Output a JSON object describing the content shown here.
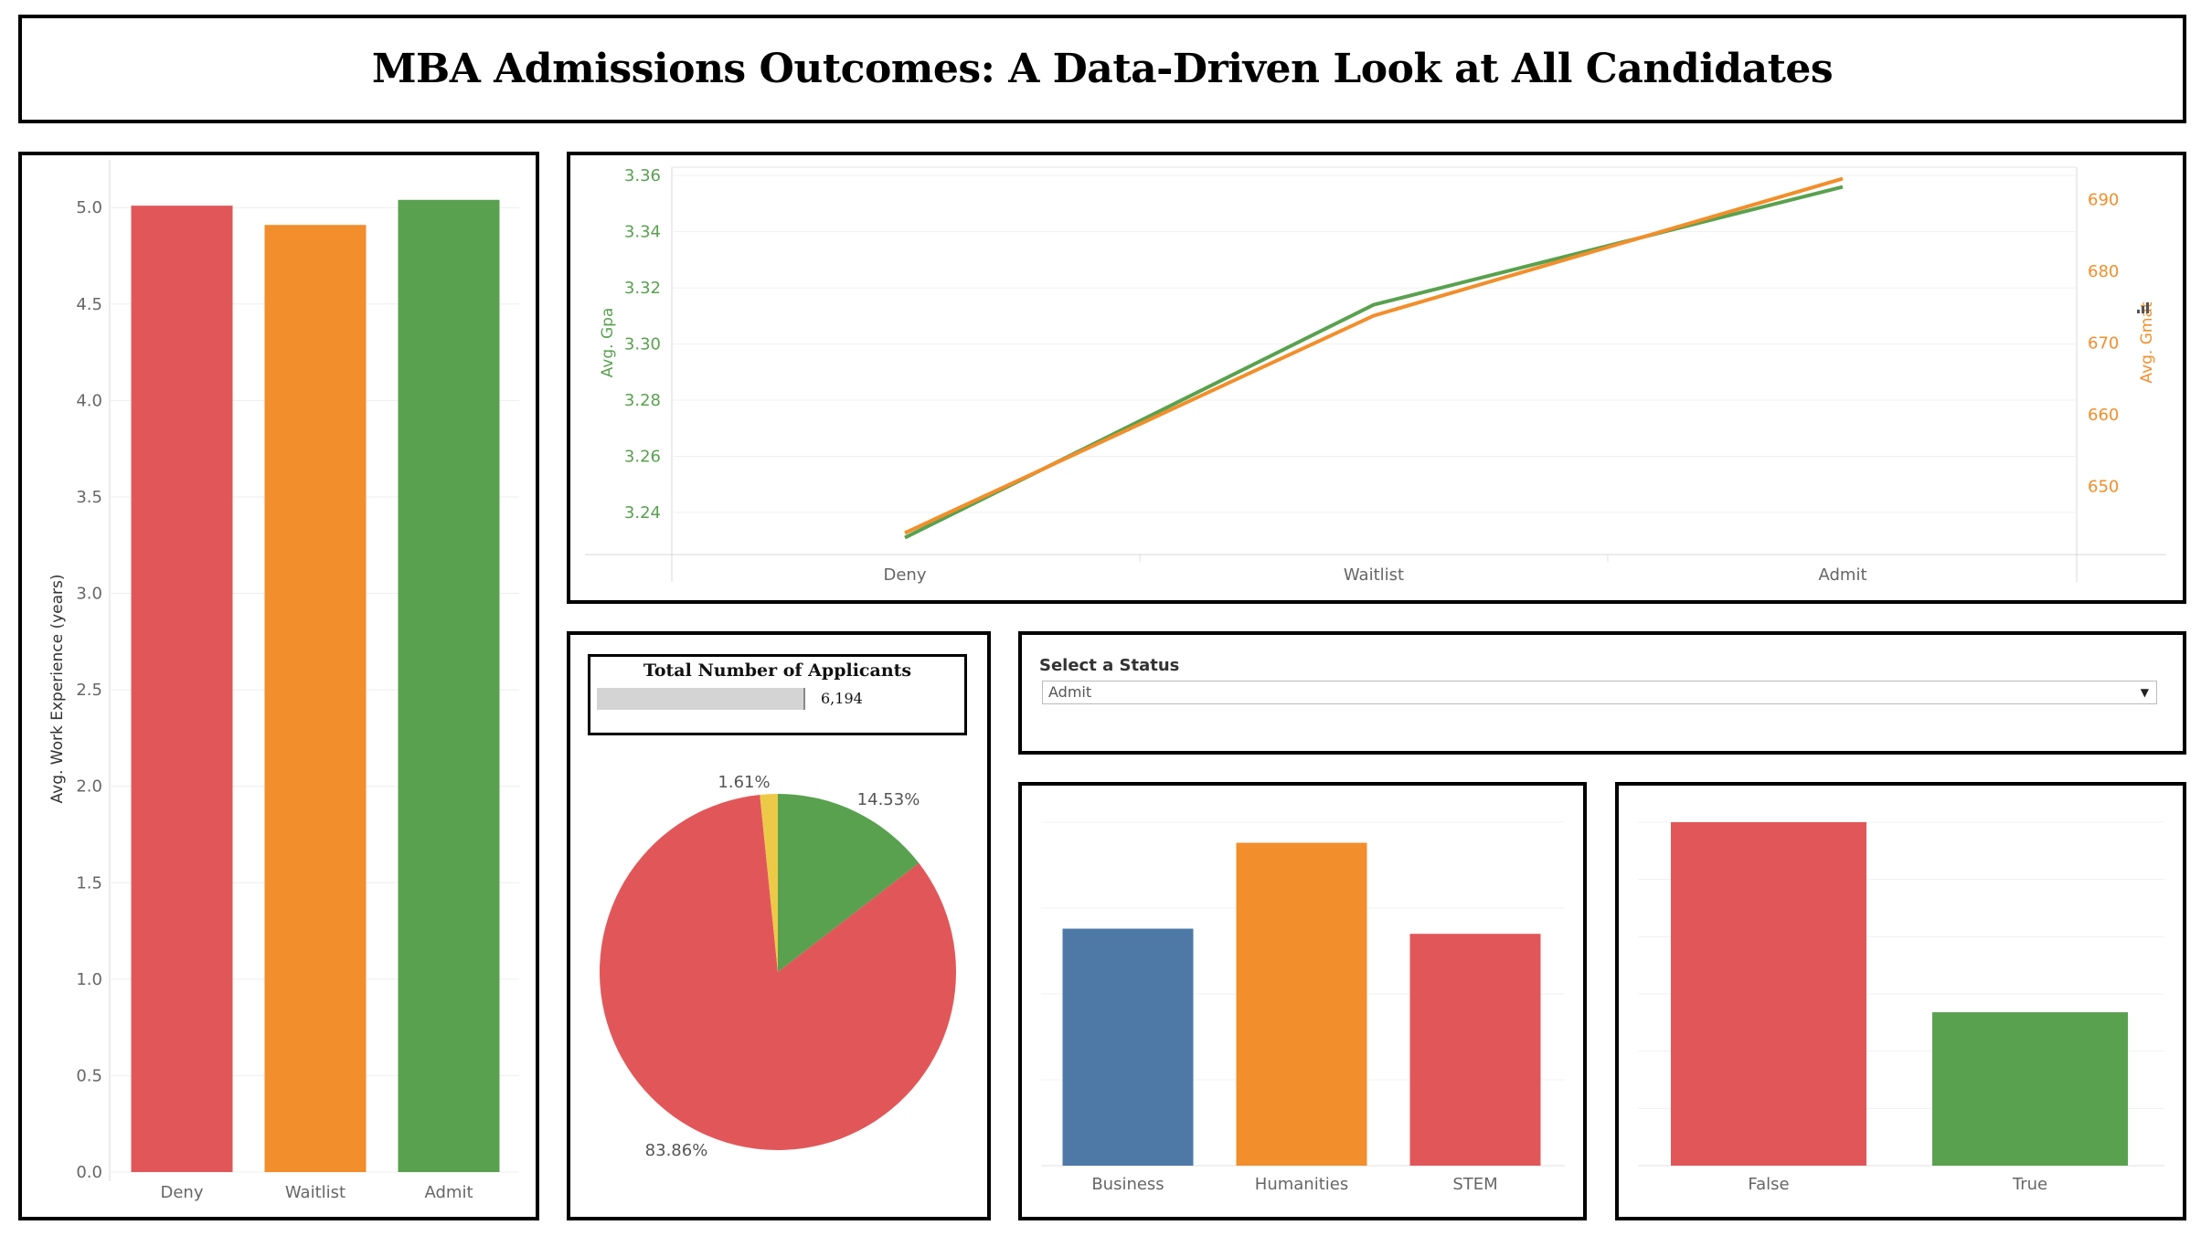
{
  "title": "MBA Admissions Outcomes: A Data-Driven Look at All Candidates",
  "colors": {
    "deny": "#e15759",
    "waitlist": "#f28e2b",
    "admit": "#59a14f",
    "business": "#4e79a7",
    "other": "#edc948",
    "gpa_axis": "#59a14f",
    "gmat_axis": "#f28e2b"
  },
  "filter": {
    "label": "Select a Status",
    "selected": "Admit"
  },
  "kpi": {
    "title": "Total Number of  Applicants",
    "value": "6,194"
  },
  "chart_data": [
    {
      "id": "work-experience",
      "type": "bar",
      "categories": [
        "Deny",
        "Waitlist",
        "Admit"
      ],
      "values": [
        5.01,
        4.91,
        5.04
      ],
      "colors": [
        "#e15759",
        "#f28e2b",
        "#59a14f"
      ],
      "ylabel": "Avg. Work Experience (years)",
      "ylim": [
        0,
        5.2
      ],
      "yticks": [
        "0.0",
        "0.5",
        "1.0",
        "1.5",
        "2.0",
        "2.5",
        "3.0",
        "3.5",
        "4.0",
        "4.5",
        "5.0"
      ],
      "grid": true
    },
    {
      "id": "gpa-gmat",
      "type": "line",
      "categories": [
        "Deny",
        "Waitlist",
        "Admit"
      ],
      "series": [
        {
          "name": "Avg. Gpa",
          "axis": "left",
          "color": "#59a14f",
          "values": [
            3.231,
            3.314,
            3.356
          ]
        },
        {
          "name": "Avg. Gmat",
          "axis": "right",
          "color": "#f28e2b",
          "values": [
            643.5,
            673.8,
            692.9
          ]
        }
      ],
      "ylabel_left": "Avg. Gpa",
      "ylabel_right": "Avg. Gmat",
      "ylim_left": [
        3.225,
        3.363
      ],
      "ylim_right": [
        640.5,
        694.5
      ],
      "yticks_left": [
        "3.24",
        "3.26",
        "3.28",
        "3.30",
        "3.32",
        "3.34",
        "3.36"
      ],
      "yticks_right": [
        "650",
        "660",
        "670",
        "680",
        "690"
      ],
      "grid": true
    },
    {
      "id": "status-share",
      "type": "pie",
      "slices": [
        {
          "label": "14.53%",
          "value": 14.53,
          "color": "#59a14f"
        },
        {
          "label": "83.86%",
          "value": 83.86,
          "color": "#e15759"
        },
        {
          "label": "1.61%",
          "value": 1.61,
          "color": "#edc948"
        }
      ]
    },
    {
      "id": "major",
      "type": "bar",
      "categories": [
        "Business",
        "Humanities",
        "STEM"
      ],
      "values": [
        1.38,
        1.88,
        1.35
      ],
      "colors": [
        "#4e79a7",
        "#f28e2b",
        "#e15759"
      ],
      "ylim": [
        0,
        2.0
      ],
      "grid": true
    },
    {
      "id": "international",
      "type": "bar",
      "categories": [
        "False",
        "True"
      ],
      "values": [
        3.0,
        1.34
      ],
      "colors": [
        "#e15759",
        "#59a14f"
      ],
      "ylim": [
        0,
        3.0
      ],
      "grid": true
    }
  ]
}
